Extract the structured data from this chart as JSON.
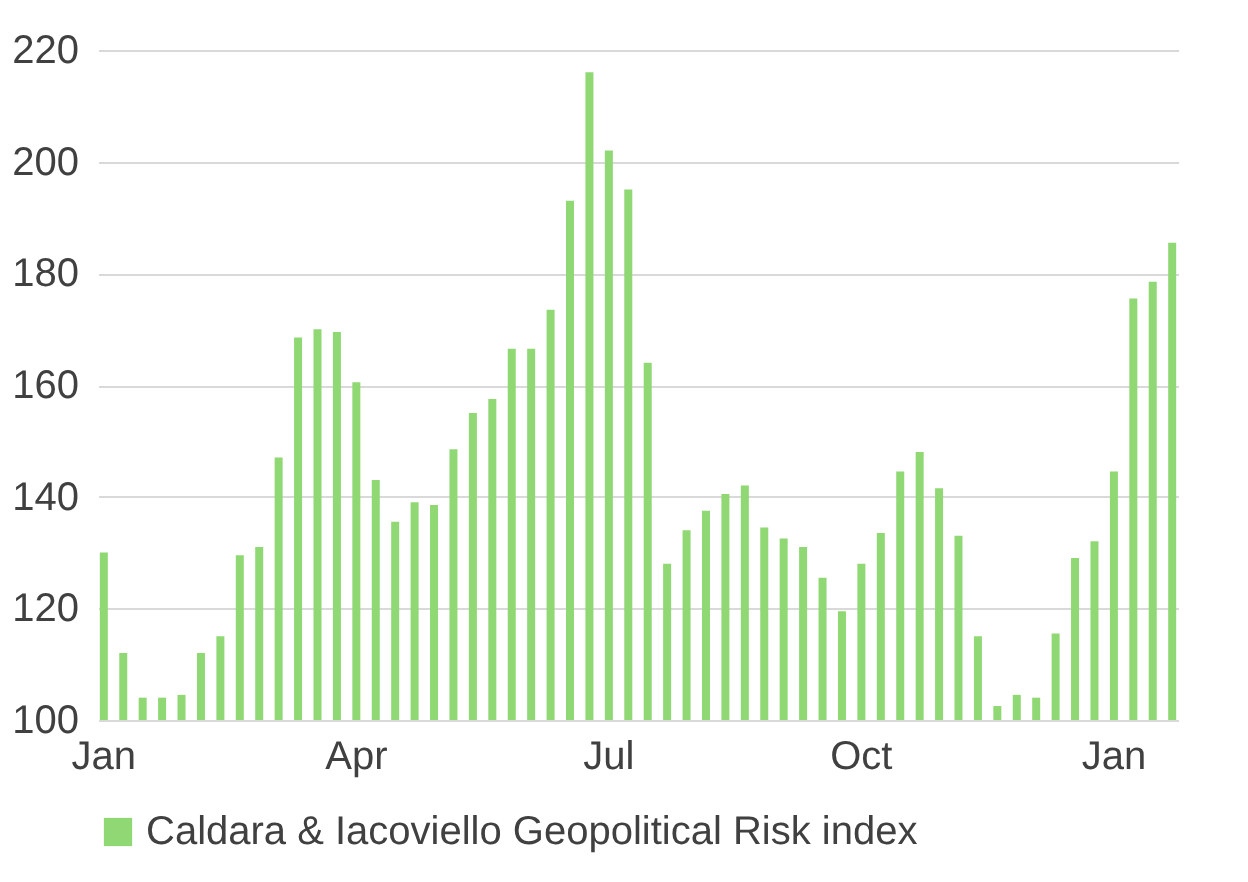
{
  "chart_data": {
    "type": "bar",
    "categories": [
      "Jan",
      null,
      null,
      null,
      null,
      null,
      null,
      null,
      null,
      null,
      null,
      null,
      null,
      "Apr",
      null,
      null,
      null,
      null,
      null,
      null,
      null,
      null,
      null,
      null,
      null,
      null,
      "Jul",
      null,
      null,
      null,
      null,
      null,
      null,
      null,
      null,
      null,
      null,
      null,
      null,
      "Oct",
      null,
      null,
      null,
      null,
      null,
      null,
      null,
      null,
      null,
      null,
      null,
      null,
      "Jan",
      null,
      null,
      null
    ],
    "series": [
      {
        "name": "Caldara & Iacoviello Geopolitical Risk index",
        "color": "#8fd873",
        "values": [
          130,
          112,
          104,
          104,
          104.5,
          112,
          115,
          129.5,
          131,
          147,
          168.5,
          170,
          169.5,
          160.5,
          143,
          135.5,
          139,
          138.5,
          148.5,
          155,
          157.5,
          166.5,
          166.5,
          173.5,
          193,
          216,
          202,
          195,
          164,
          128,
          134,
          137.5,
          140.5,
          142,
          134.5,
          132.5,
          131,
          125.5,
          119.5,
          128,
          133.5,
          144.5,
          148,
          141.5,
          133,
          115,
          102.5,
          104.5,
          104,
          115.5,
          129,
          132,
          144.5,
          175.5,
          178.5,
          185.5
        ]
      }
    ],
    "ylim": [
      100,
      220
    ],
    "yticks": [
      100,
      120,
      140,
      160,
      180,
      200,
      220
    ],
    "grid": "y",
    "legend": "bottom"
  }
}
